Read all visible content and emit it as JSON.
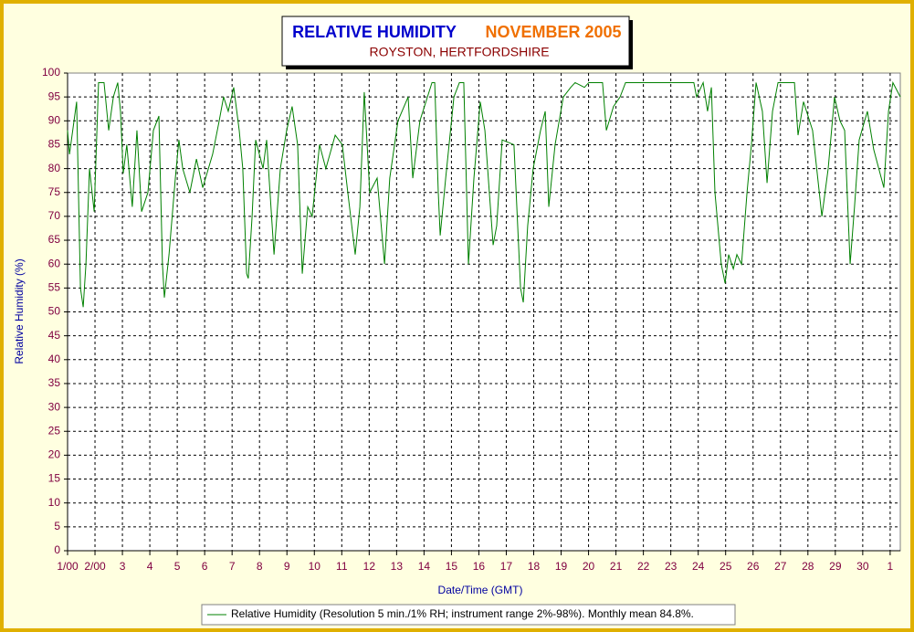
{
  "chart_data": {
    "type": "line",
    "title": "RELATIVE HUMIDITY",
    "period": "NOVEMBER 2005",
    "subtitle": "ROYSTON, HERTFORDSHIRE",
    "xlabel": "Date/Time (GMT)",
    "ylabel": "Relative Humidity (%)",
    "xlim": [
      0,
      30.37
    ],
    "ylim": [
      0,
      100
    ],
    "yticks": [
      0,
      5,
      10,
      15,
      20,
      25,
      30,
      35,
      40,
      45,
      50,
      55,
      60,
      65,
      70,
      75,
      80,
      85,
      90,
      95,
      100
    ],
    "xticks": [
      {
        "value": 0,
        "label": "1/00"
      },
      {
        "value": 1,
        "label": "2/00"
      },
      {
        "value": 2,
        "label": "3"
      },
      {
        "value": 3,
        "label": "4"
      },
      {
        "value": 4,
        "label": "5"
      },
      {
        "value": 5,
        "label": "6"
      },
      {
        "value": 6,
        "label": "7"
      },
      {
        "value": 7,
        "label": "8"
      },
      {
        "value": 8,
        "label": "9"
      },
      {
        "value": 9,
        "label": "10"
      },
      {
        "value": 10,
        "label": "11"
      },
      {
        "value": 11,
        "label": "12"
      },
      {
        "value": 12,
        "label": "13"
      },
      {
        "value": 13,
        "label": "14"
      },
      {
        "value": 14,
        "label": "15"
      },
      {
        "value": 15,
        "label": "16"
      },
      {
        "value": 16,
        "label": "17"
      },
      {
        "value": 17,
        "label": "18"
      },
      {
        "value": 18,
        "label": "19"
      },
      {
        "value": 19,
        "label": "20"
      },
      {
        "value": 20,
        "label": "21"
      },
      {
        "value": 21,
        "label": "22"
      },
      {
        "value": 22,
        "label": "23"
      },
      {
        "value": 23,
        "label": "24"
      },
      {
        "value": 24,
        "label": "25"
      },
      {
        "value": 25,
        "label": "26"
      },
      {
        "value": 26,
        "label": "27"
      },
      {
        "value": 27,
        "label": "28"
      },
      {
        "value": 28,
        "label": "29"
      },
      {
        "value": 29,
        "label": "30"
      },
      {
        "value": 30,
        "label": "1"
      }
    ],
    "grid": true,
    "series": [
      {
        "name": "Relative Humidity (Resolution 5 min./1% RH; instrument range 2%-98%). Monthly mean 84.8%.",
        "color": "#008000",
        "x": [
          0,
          0.07,
          0.33,
          0.47,
          0.57,
          0.67,
          0.8,
          0.97,
          1.13,
          1.33,
          1.5,
          1.67,
          1.83,
          1.93,
          2.03,
          2.16,
          2.36,
          2.53,
          2.7,
          2.93,
          3.13,
          3.33,
          3.46,
          3.53,
          3.7,
          3.93,
          4.06,
          4.2,
          4.46,
          4.7,
          4.93,
          5.29,
          5.53,
          5.69,
          5.86,
          6.06,
          6.26,
          6.39,
          6.53,
          6.59,
          6.73,
          6.86,
          7.13,
          7.26,
          7.53,
          7.76,
          7.99,
          8.19,
          8.39,
          8.56,
          8.76,
          8.92,
          9.19,
          9.42,
          9.76,
          10.02,
          10.22,
          10.49,
          10.66,
          10.82,
          11.02,
          11.29,
          11.56,
          11.75,
          12.05,
          12.42,
          12.59,
          12.85,
          13.29,
          13.39,
          13.52,
          13.59,
          13.79,
          14.09,
          14.29,
          14.45,
          14.62,
          14.82,
          15.05,
          15.22,
          15.52,
          15.65,
          15.85,
          16.28,
          16.52,
          16.62,
          16.78,
          16.98,
          17.25,
          17.42,
          17.55,
          17.78,
          18.08,
          18.35,
          18.51,
          18.85,
          19.01,
          19.51,
          19.65,
          19.91,
          20.15,
          20.35,
          22.84,
          22.94,
          23.18,
          23.34,
          23.48,
          23.61,
          23.84,
          23.98,
          24.11,
          24.28,
          24.41,
          24.58,
          24.78,
          24.94,
          25.11,
          25.34,
          25.51,
          25.71,
          25.91,
          26.51,
          26.64,
          26.84,
          27.17,
          27.51,
          27.74,
          27.97,
          28.17,
          28.34,
          28.54,
          28.7,
          28.87,
          29.17,
          29.4,
          29.77,
          29.94,
          30.1,
          30.37
        ],
        "values": [
          88,
          83,
          94,
          55,
          51,
          60,
          80,
          71,
          98,
          98,
          88,
          95,
          98,
          92,
          79,
          85,
          72,
          88,
          71,
          75,
          88,
          91,
          60,
          53,
          62,
          78,
          86,
          80,
          75,
          82,
          76,
          83,
          90,
          95,
          92,
          97,
          88,
          80,
          58,
          57,
          70,
          86,
          80,
          86,
          62,
          80,
          88,
          93,
          85,
          58,
          72,
          70,
          85,
          80,
          87,
          85,
          75,
          62,
          72,
          96,
          75,
          78,
          60,
          78,
          90,
          95,
          78,
          90,
          98,
          98,
          75,
          66,
          78,
          95,
          98,
          98,
          60,
          78,
          94,
          88,
          64,
          68,
          86,
          85,
          55,
          52,
          68,
          80,
          88,
          92,
          72,
          85,
          95,
          97,
          98,
          97,
          98,
          98,
          88,
          93,
          95,
          98,
          98,
          95,
          98,
          92,
          97,
          75,
          60,
          56,
          62,
          59,
          62,
          60,
          75,
          85,
          98,
          92,
          77,
          92,
          98,
          98,
          87,
          94,
          88,
          70,
          80,
          95,
          90,
          88,
          60,
          72,
          86,
          92,
          84,
          76,
          92,
          98,
          95
        ]
      }
    ]
  }
}
